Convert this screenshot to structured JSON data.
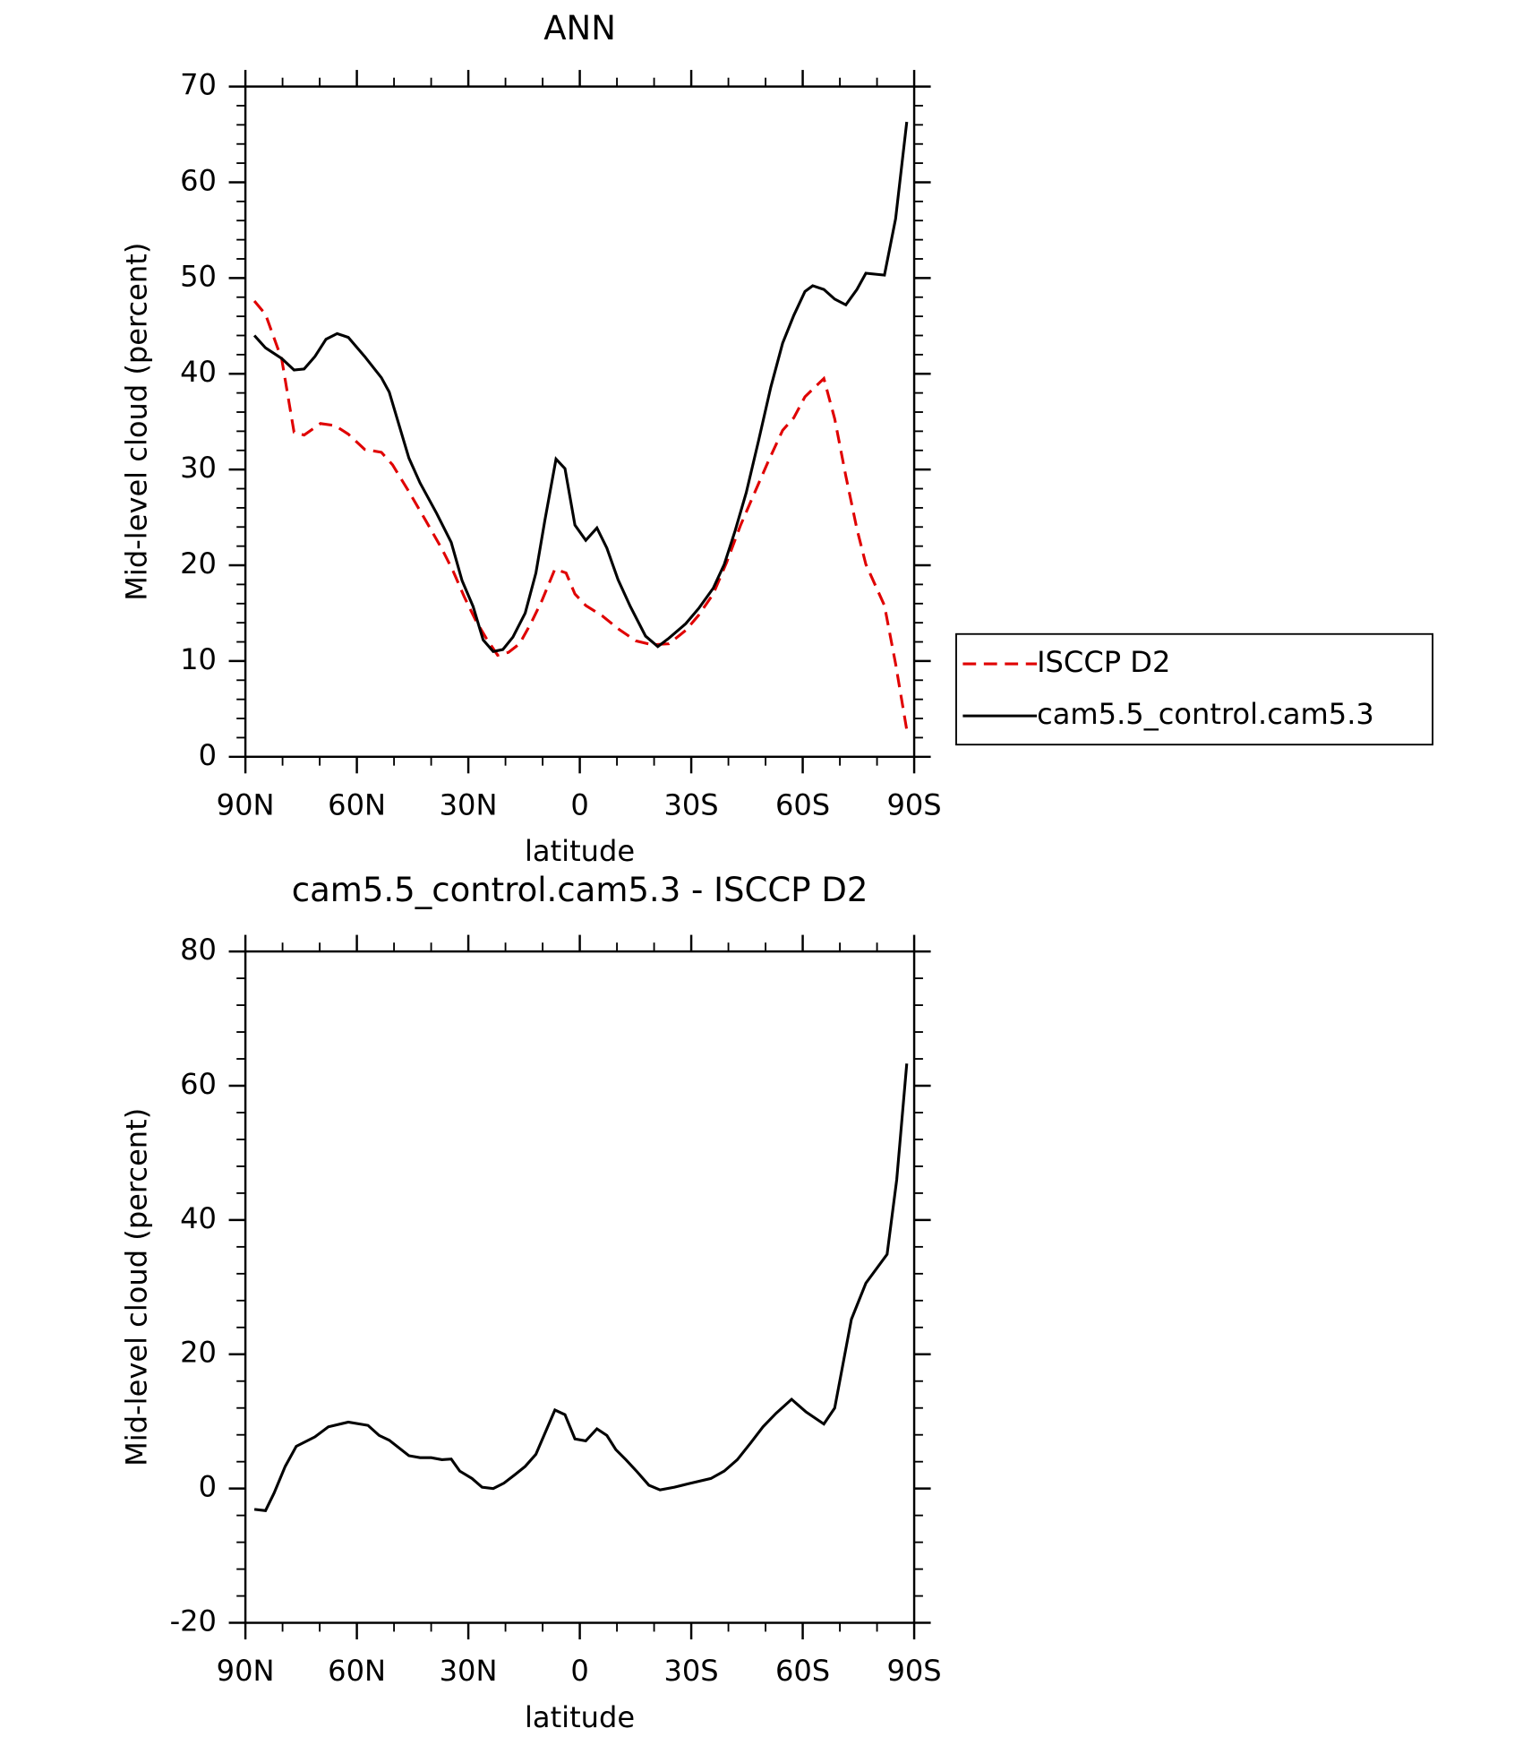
{
  "chart_data": [
    {
      "type": "line",
      "title": "ANN",
      "xlabel": "latitude",
      "ylabel": "Mid-level cloud (percent)",
      "xlim": [
        90,
        -90
      ],
      "xticks": [
        {
          "value": 90,
          "label": "90N"
        },
        {
          "value": 60,
          "label": "60N"
        },
        {
          "value": 30,
          "label": "30N"
        },
        0,
        {
          "value": -30,
          "label": "30S"
        },
        {
          "value": -60,
          "label": "60S"
        },
        {
          "value": -90,
          "label": "90S"
        }
      ],
      "ylim": [
        0,
        70
      ],
      "yticks": [
        0,
        10,
        20,
        30,
        40,
        50,
        60,
        70
      ],
      "legend": "outside right",
      "series": [
        {
          "name": "ISCCP D2",
          "color": "#e00000",
          "linestyle": "dashed",
          "x": [
            87.6,
            84.6,
            80.2,
            76.9,
            74.2,
            69.8,
            65.9,
            62.3,
            57.9,
            53.4,
            50.4,
            46,
            41.5,
            37.1,
            34.1,
            31.1,
            28.1,
            25.2,
            22.1,
            19.2,
            16.2,
            13.2,
            10.2,
            6.7,
            3.7,
            1.3,
            -1.6,
            -6.1,
            -10.6,
            -15.1,
            -19.5,
            -24,
            -28.5,
            -32,
            -35.9,
            -39.5,
            -43.3,
            -47.2,
            -50.8,
            -54.6,
            -57.6,
            -60.6,
            -65.7,
            -68.6,
            -71.6,
            -74.6,
            -77,
            -82,
            -85,
            -88
          ],
          "values": [
            47.6,
            46.2,
            41.5,
            33.9,
            33.6,
            34.8,
            34.6,
            33.7,
            32.1,
            31.8,
            30.5,
            27.7,
            24.7,
            21.7,
            19.4,
            16.7,
            14.3,
            12.4,
            10.6,
            10.9,
            11.8,
            13.9,
            16.3,
            19.6,
            19.2,
            17.0,
            15.8,
            14.7,
            13.3,
            12.1,
            11.7,
            11.8,
            13.2,
            14.8,
            17.0,
            20.3,
            24.2,
            27.7,
            30.9,
            34.1,
            35.4,
            37.6,
            39.5,
            35.3,
            29.3,
            23.8,
            20.1,
            15.8,
            9.7,
            2.8
          ]
        },
        {
          "name": "cam5.5_control.cam5.3",
          "color": "#000000",
          "linestyle": "solid",
          "x": [
            87.6,
            84.6,
            80.2,
            76.9,
            74.2,
            71.3,
            68.3,
            65.3,
            62.3,
            57.9,
            53.4,
            51.3,
            46,
            43,
            38.5,
            34.6,
            31.7,
            28.7,
            26,
            23.3,
            20.7,
            18,
            14.7,
            11.8,
            9.4,
            6.4,
            4,
            1.3,
            -1.6,
            -4.6,
            -7.3,
            -10.3,
            -13.6,
            -17.7,
            -21,
            -24,
            -28.5,
            -32,
            -35.9,
            -38.9,
            -41.8,
            -44.8,
            -48.1,
            -51.4,
            -54.6,
            -57.6,
            -60.6,
            -62.7,
            -65.7,
            -68.6,
            -71.6,
            -74.6,
            -77,
            -82,
            -85,
            -88
          ],
          "values": [
            44.0,
            42.7,
            41.6,
            40.4,
            40.5,
            41.8,
            43.6,
            44.2,
            43.8,
            41.8,
            39.6,
            38.1,
            31.2,
            28.6,
            25.4,
            22.4,
            18.4,
            15.7,
            12.2,
            11.0,
            11.2,
            12.5,
            15,
            19.2,
            24.7,
            31.1,
            30.1,
            24.2,
            22.6,
            23.9,
            21.8,
            18.5,
            15.7,
            12.6,
            11.5,
            12.4,
            13.9,
            15.5,
            17.6,
            20.1,
            23.6,
            27.6,
            33.0,
            38.6,
            43.2,
            46.1,
            48.6,
            49.2,
            48.8,
            47.8,
            47.2,
            48.8,
            50.5,
            50.3,
            56.2,
            66.3
          ]
        }
      ]
    },
    {
      "type": "line",
      "title": "cam5.5_control.cam5.3 - ISCCP D2",
      "xlabel": "latitude",
      "ylabel": "Mid-level cloud (percent)",
      "xlim": [
        90,
        -90
      ],
      "xticks": [
        {
          "value": 90,
          "label": "90N"
        },
        {
          "value": 60,
          "label": "60N"
        },
        {
          "value": 30,
          "label": "30N"
        },
        0,
        {
          "value": -30,
          "label": "30S"
        },
        {
          "value": -60,
          "label": "60S"
        },
        {
          "value": -90,
          "label": "90S"
        }
      ],
      "ylim": [
        -20,
        80
      ],
      "yticks": [
        -20,
        0,
        20,
        40,
        60,
        80
      ],
      "series": [
        {
          "color": "#000000",
          "linestyle": "solid",
          "x": [
            87.6,
            84.6,
            82.3,
            79.3,
            76.3,
            71.3,
            67.7,
            62.3,
            57,
            54,
            51.3,
            46,
            43,
            40,
            37.1,
            34.6,
            32.3,
            29,
            26.3,
            23.3,
            20.4,
            17.4,
            14.7,
            11.8,
            9.4,
            6.7,
            4,
            1.3,
            -1.6,
            -4.6,
            -7.3,
            -9.7,
            -12.4,
            -15.4,
            -18.6,
            -21.6,
            -25.5,
            -29,
            -35.3,
            -38.9,
            -42.4,
            -46,
            -49.3,
            -52.8,
            -57,
            -60.9,
            -65.7,
            -68.6,
            -73.1,
            -77,
            -82.7,
            -85.3,
            -88
          ],
          "values": [
            -3.1,
            -3.3,
            -0.7,
            3.3,
            6.3,
            7.7,
            9.2,
            9.9,
            9.4,
            7.9,
            7.2,
            4.9,
            4.6,
            4.6,
            4.3,
            4.4,
            2.6,
            1.5,
            0.2,
            0,
            0.8,
            2.1,
            3.3,
            5.1,
            8.2,
            11.7,
            11.0,
            7.4,
            7.1,
            8.9,
            7.9,
            5.8,
            4.3,
            2.5,
            0.5,
            -0.2,
            0.2,
            0.7,
            1.5,
            2.6,
            4.3,
            6.8,
            9.2,
            11.2,
            13.3,
            11.4,
            9.6,
            12.0,
            25.2,
            30.6,
            34.9,
            46.0,
            63.3
          ]
        }
      ]
    }
  ]
}
